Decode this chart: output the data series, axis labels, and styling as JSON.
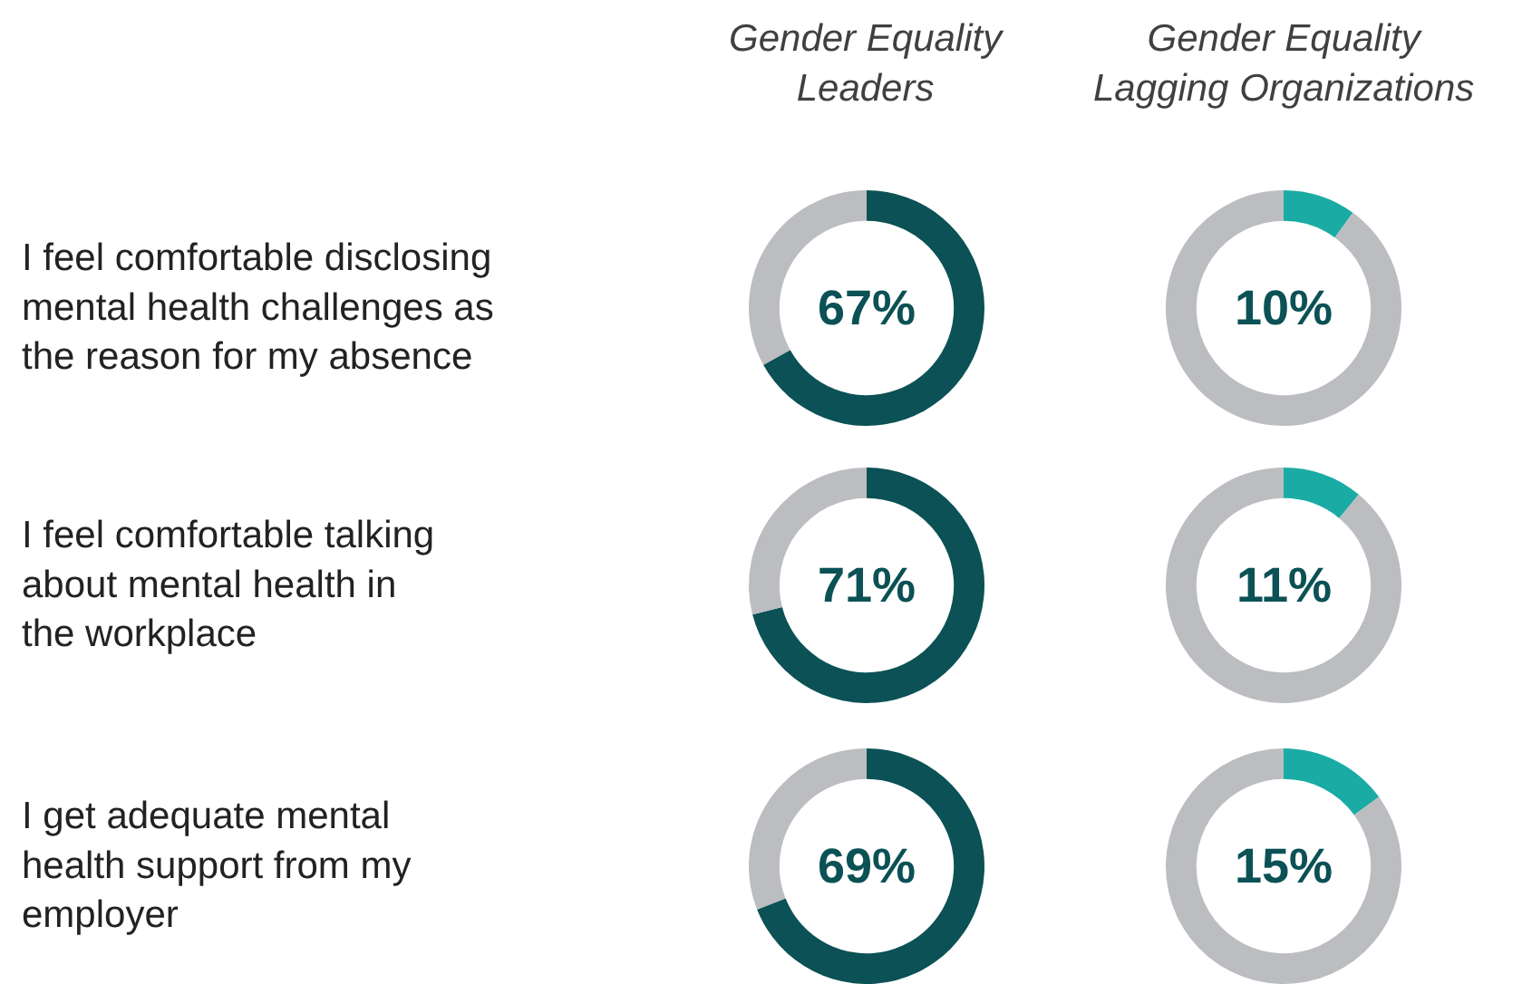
{
  "chart_data": [
    {
      "type": "donut",
      "title": "Gender Equality\nLeaders",
      "ylabel": "I feel comfortable disclosing\nmental health challenges as\nthe reason for my absence",
      "categories": [
        null,
        null
      ],
      "values": [
        67,
        33
      ],
      "colors": [
        "#0b5155",
        "#bcbdc0"
      ],
      "annotations": [
        "67%"
      ]
    },
    {
      "type": "donut",
      "title": "Gender Equality\nLagging Organizations",
      "categories": [
        null,
        null
      ],
      "values": [
        10,
        90
      ],
      "colors": [
        "#1aaba5",
        "#bcbdc0"
      ],
      "annotations": [
        "10%"
      ]
    },
    {
      "type": "donut",
      "ylabel": "I feel comfortable talking\nabout mental health in\nthe workplace",
      "categories": [
        null,
        null
      ],
      "values": [
        71,
        29
      ],
      "colors": [
        "#0b5155",
        "#bcbdc0"
      ],
      "annotations": [
        "71%"
      ]
    },
    {
      "type": "donut",
      "categories": [
        null,
        null
      ],
      "values": [
        11,
        89
      ],
      "colors": [
        "#1aaba5",
        "#bcbdc0"
      ],
      "annotations": [
        "11%"
      ]
    },
    {
      "type": "donut",
      "ylabel": "I get adequate mental\nhealth support from my\nemployer",
      "categories": [
        null,
        null
      ],
      "values": [
        69,
        31
      ],
      "colors": [
        "#0b5155",
        "#bcbdc0"
      ],
      "annotations": [
        "69%"
      ]
    },
    {
      "type": "donut",
      "categories": [
        null,
        null
      ],
      "values": [
        15,
        85
      ],
      "colors": [
        "#1aaba5",
        "#bcbdc0"
      ],
      "annotations": [
        "15%"
      ]
    }
  ]
}
